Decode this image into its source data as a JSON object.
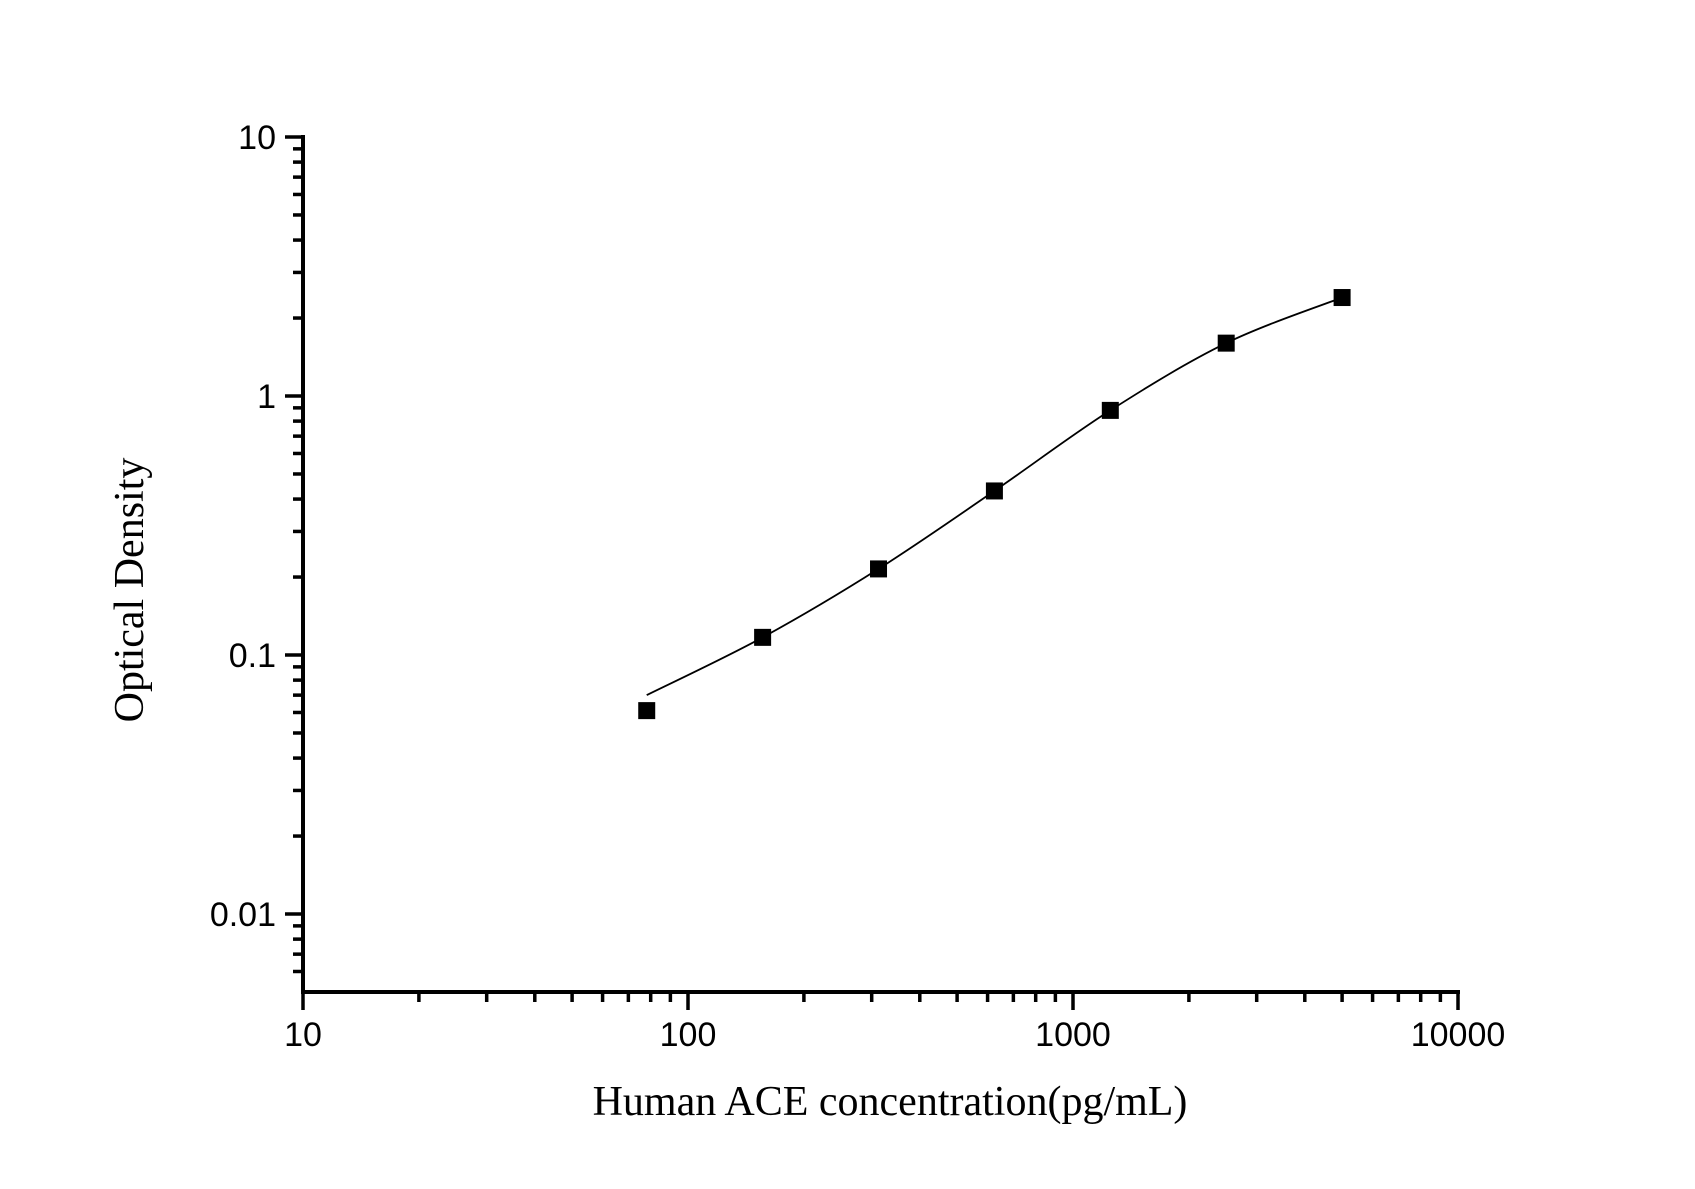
{
  "page": {
    "background_color": "#ffffff",
    "ink_color": "#000000"
  },
  "chart_data": {
    "type": "scatter",
    "subtype": "elisa-standard-curve-with-fitted-line",
    "title": "",
    "xlabel": "Human ACE concentration(pg/mL)",
    "ylabel": "Optical Density",
    "x_scale": "log",
    "y_scale": "log",
    "xlim": [
      10,
      10000
    ],
    "ylim": [
      0.005,
      10
    ],
    "grid": false,
    "legend": false,
    "x_tick_labels": [
      "10",
      "100",
      "1000",
      "10000"
    ],
    "x_tick_values": [
      10,
      100,
      1000,
      10000
    ],
    "y_tick_labels": [
      "10",
      "1",
      "0.1",
      "0.01"
    ],
    "y_tick_values": [
      10,
      1,
      0.1,
      0.01
    ],
    "series": [
      {
        "name": "standard-points",
        "marker": "filled-square",
        "marker_color": "#000000",
        "x": [
          78.125,
          156.25,
          312.5,
          625,
          1250,
          2500,
          5000
        ],
        "y": [
          0.061,
          0.117,
          0.215,
          0.43,
          0.88,
          1.6,
          2.4
        ]
      },
      {
        "name": "fitted-curve",
        "marker": "none",
        "line_color": "#000000",
        "x": [
          78.125,
          156.25,
          312.5,
          625,
          1250,
          2500,
          5000
        ],
        "y": [
          0.07,
          0.117,
          0.215,
          0.43,
          0.88,
          1.6,
          2.4
        ]
      }
    ]
  }
}
